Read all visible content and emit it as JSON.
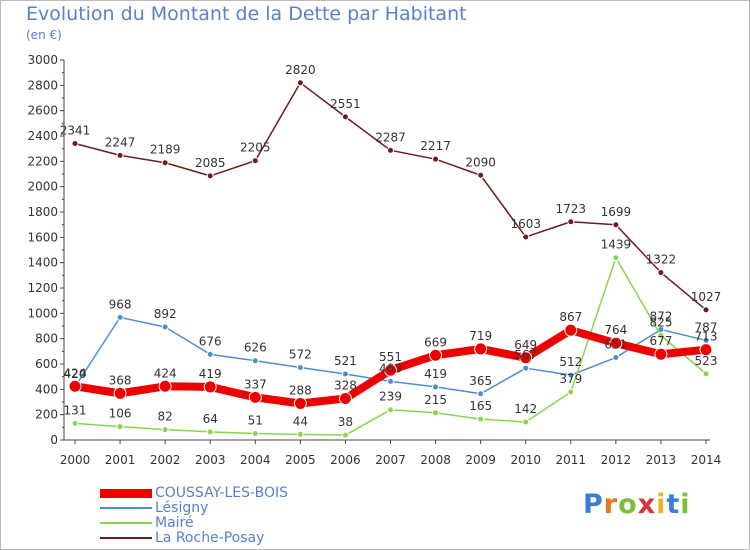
{
  "title": "Evolution du Montant de la Dette par Habitant",
  "unit": "(en €)",
  "brand": "Proxiti",
  "chart_data": {
    "type": "line",
    "title": "Evolution du Montant de la Dette par Habitant",
    "ylabel": "(en €)",
    "xlabel": "",
    "ylim": [
      0,
      3000
    ],
    "yticks": [
      0,
      200,
      400,
      600,
      800,
      1000,
      1200,
      1400,
      1600,
      1800,
      2000,
      2200,
      2400,
      2600,
      2800,
      3000
    ],
    "grid": false,
    "legend_position": "bottom-left",
    "categories": [
      "2000",
      "2001",
      "2002",
      "2003",
      "2004",
      "2005",
      "2006",
      "2007",
      "2008",
      "2009",
      "2010",
      "2011",
      "2012",
      "2013",
      "2014"
    ],
    "series": [
      {
        "name": "La Roche-Posay",
        "color": "#6b1c1c",
        "values": [
          2341,
          2247,
          2189,
          2085,
          2205,
          2820,
          2551,
          2287,
          2217,
          2090,
          1603,
          1723,
          1699,
          1322,
          1027
        ]
      },
      {
        "name": "Lésigny",
        "color": "#4d8ed1",
        "values": [
          420,
          968,
          892,
          676,
          626,
          572,
          521,
          463,
          419,
          365,
          567,
          512,
          651,
          872,
          787
        ]
      },
      {
        "name": "Mairé",
        "color": "#88d64c",
        "values": [
          131,
          106,
          82,
          64,
          51,
          44,
          38,
          239,
          215,
          165,
          142,
          379,
          1439,
          825,
          523
        ]
      },
      {
        "name": "COUSSAY-LES-BOIS",
        "color": "#ee0000",
        "values": [
          424,
          368,
          424,
          419,
          337,
          288,
          328,
          551,
          669,
          719,
          649,
          867,
          764,
          677,
          713
        ]
      }
    ]
  }
}
